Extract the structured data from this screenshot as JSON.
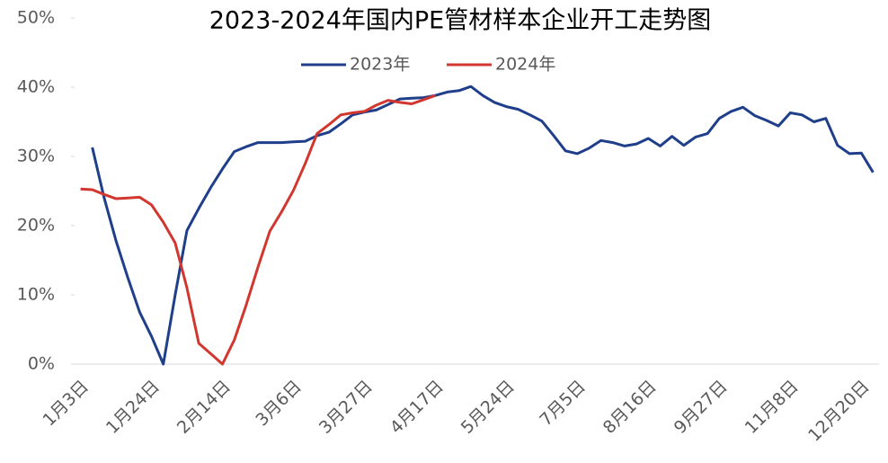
{
  "chart_data": {
    "type": "line",
    "title": "2023-2024年国内PE管材样本企业开工走势图",
    "categories": [
      "1月3日",
      null,
      null,
      null,
      null,
      null,
      "1月24日",
      null,
      null,
      null,
      null,
      null,
      "2月14日",
      null,
      null,
      null,
      null,
      null,
      "3月6日",
      null,
      null,
      null,
      null,
      null,
      "3月27日",
      null,
      null,
      null,
      null,
      null,
      "4月17日",
      null,
      null,
      null,
      null,
      null,
      "5月24日",
      null,
      null,
      null,
      null,
      null,
      "7月5日",
      null,
      null,
      null,
      null,
      null,
      "8月16日",
      null,
      null,
      null,
      null,
      null,
      "9月27日",
      null,
      null,
      null,
      null,
      null,
      "11月8日",
      null,
      null,
      null,
      null,
      null,
      "12月20日",
      null
    ],
    "series": [
      {
        "name": "2023年",
        "color": "#1f3f8a",
        "values": [
          null,
          31.3,
          24,
          17.8,
          12.5,
          7.5,
          4,
          0,
          10,
          19.3,
          22.5,
          25.5,
          28.2,
          30.7,
          31.4,
          32,
          32,
          32,
          32.1,
          32.2,
          33,
          33.5,
          34.7,
          36,
          36.4,
          36.7,
          37.5,
          38.3,
          38.4,
          38.5,
          38.8,
          39.3,
          39.5,
          40.1,
          38.8,
          37.8,
          37.2,
          36.8,
          36,
          35.1,
          33,
          30.8,
          30.4,
          31.2,
          32.3,
          32,
          31.5,
          31.8,
          32.6,
          31.5,
          32.9,
          31.6,
          32.8,
          33.3,
          35.5,
          36.5,
          37.1,
          35.9,
          35.2,
          34.4,
          36.3,
          36,
          35,
          35.5,
          31.6,
          30.4,
          30.5,
          27.7
        ]
      },
      {
        "name": "2024年",
        "color": "#d2372f",
        "values": [
          25.3,
          25.2,
          24.5,
          23.9,
          24,
          24.1,
          23,
          20.5,
          17.5,
          11,
          3,
          1.5,
          0,
          3.5,
          8.5,
          14,
          19.2,
          22,
          25.1,
          29,
          33.3,
          34.6,
          36,
          36.3,
          36.5,
          37.4,
          38.1,
          37.8,
          37.6,
          38.2,
          38.8,
          null,
          null,
          null,
          null,
          null,
          null,
          null,
          null,
          null,
          null,
          null,
          null,
          null,
          null,
          null,
          null,
          null,
          null,
          null,
          null,
          null,
          null,
          null,
          null,
          null,
          null,
          null,
          null,
          null,
          null,
          null,
          null,
          null,
          null,
          null,
          null,
          null
        ]
      }
    ],
    "ylim": [
      0,
      50
    ],
    "yticks": [
      {
        "value": 0,
        "label": "0%"
      },
      {
        "value": 10,
        "label": "10%"
      },
      {
        "value": 20,
        "label": "20%"
      },
      {
        "value": 30,
        "label": "30%"
      },
      {
        "value": 40,
        "label": "40%"
      },
      {
        "value": 50,
        "label": "50%"
      }
    ],
    "grid": false
  }
}
